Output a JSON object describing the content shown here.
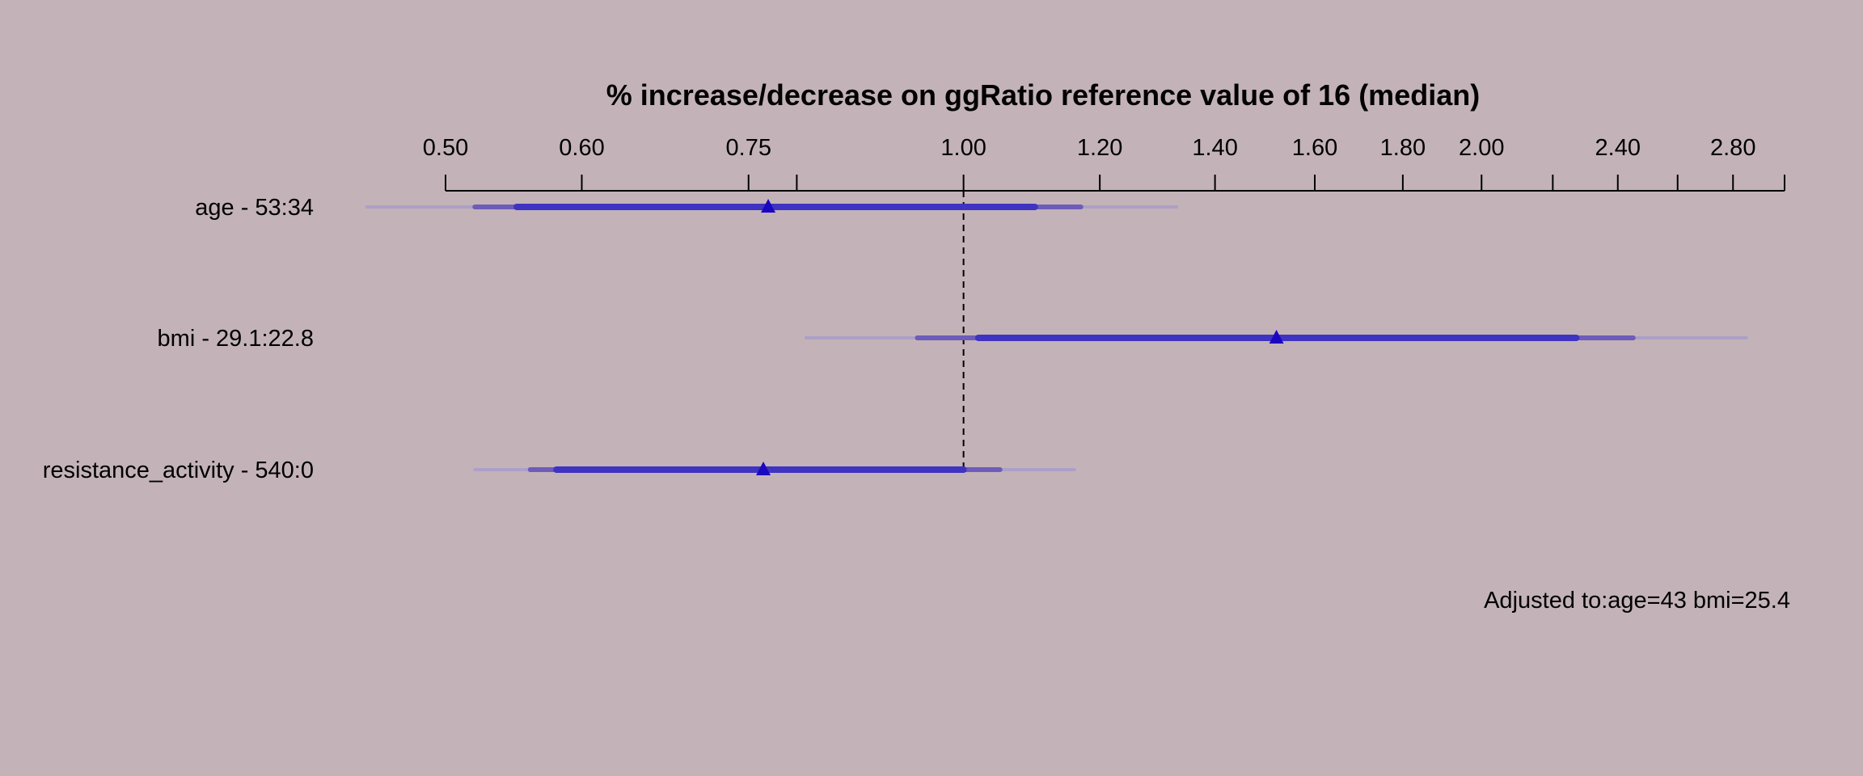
{
  "chart_data": {
    "type": "forest",
    "title": "% increase/decrease on ggRatio reference value of 16 (median)",
    "x_scale": "log",
    "xlim": [
      0.5,
      3.0
    ],
    "reference_line": 1.0,
    "tick_labels": [
      "0.50",
      "0.60",
      "0.75",
      "1.00",
      "1.20",
      "1.40",
      "1.60",
      "1.80",
      "2.00",
      "2.40",
      "2.80"
    ],
    "minor_ticks": [
      0.8,
      2.2,
      2.6,
      3.0
    ],
    "rows": [
      {
        "label": "age - 53:34",
        "estimate": 0.77,
        "ci_90": [
          0.55,
          1.1
        ],
        "ci_95": [
          0.52,
          1.17
        ],
        "ci_99": [
          0.45,
          1.33
        ]
      },
      {
        "label": "bmi - 29.1:22.8",
        "estimate": 1.52,
        "ci_90": [
          1.02,
          2.27
        ],
        "ci_95": [
          0.94,
          2.45
        ],
        "ci_99": [
          0.81,
          2.85
        ]
      },
      {
        "label": "resistance_activity - 540:0",
        "estimate": 0.765,
        "ci_90": [
          0.58,
          1.0
        ],
        "ci_95": [
          0.56,
          1.05
        ],
        "ci_99": [
          0.52,
          1.16
        ]
      }
    ],
    "note": "Adjusted to:age=43 bmi=25.4",
    "colors": {
      "background": "#c3b3b9",
      "ci_90": "#3f33c2",
      "ci_95": "#6d5cb9",
      "ci_99": "#ada0c6",
      "marker": "#1a08c0",
      "axis": "#000000"
    }
  }
}
